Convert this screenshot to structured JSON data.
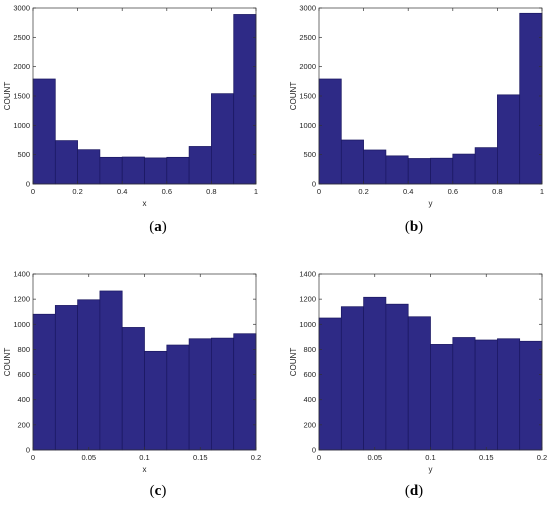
{
  "bar_color": "#2e2a86",
  "bar_edge_color": "#1a1760",
  "chart_data": [
    {
      "type": "bar",
      "caption": "a",
      "xlabel": "x",
      "ylabel": "COUNT",
      "xlim": [
        0,
        1
      ],
      "ylim": [
        0,
        3000
      ],
      "xticks": [
        0,
        0.2,
        0.4,
        0.6,
        0.8,
        1
      ],
      "xtick_labels": [
        "0",
        "0.2",
        "0.4",
        "0.6",
        "0.8",
        "1"
      ],
      "yticks": [
        0,
        500,
        1000,
        1500,
        2000,
        2500,
        3000
      ],
      "bin_edges": [
        0,
        0.1,
        0.2,
        0.3,
        0.4,
        0.5,
        0.6,
        0.7,
        0.8,
        0.9,
        1.0
      ],
      "values": [
        1790,
        740,
        585,
        455,
        460,
        445,
        455,
        640,
        1540,
        2890
      ]
    },
    {
      "type": "bar",
      "caption": "b",
      "xlabel": "y",
      "ylabel": "COUNT",
      "xlim": [
        0,
        1
      ],
      "ylim": [
        0,
        3000
      ],
      "xticks": [
        0,
        0.2,
        0.4,
        0.6,
        0.8,
        1
      ],
      "xtick_labels": [
        "0",
        "0.2",
        "0.4",
        "0.6",
        "0.8",
        "1"
      ],
      "yticks": [
        0,
        500,
        1000,
        1500,
        2000,
        2500,
        3000
      ],
      "bin_edges": [
        0,
        0.1,
        0.2,
        0.3,
        0.4,
        0.5,
        0.6,
        0.7,
        0.8,
        0.9,
        1.0
      ],
      "values": [
        1790,
        750,
        580,
        480,
        435,
        440,
        510,
        620,
        1520,
        2910
      ]
    },
    {
      "type": "bar",
      "caption": "c",
      "xlabel": "x",
      "ylabel": "COUNT",
      "xlim": [
        0,
        0.2
      ],
      "ylim": [
        0,
        1400
      ],
      "xticks": [
        0,
        0.05,
        0.1,
        0.15,
        0.2
      ],
      "xtick_labels": [
        "0",
        "0.05",
        "0.1",
        "0.15",
        "0.2"
      ],
      "yticks": [
        0,
        200,
        400,
        600,
        800,
        1000,
        1200,
        1400
      ],
      "bin_edges": [
        0,
        0.02,
        0.04,
        0.06,
        0.08,
        0.1,
        0.12,
        0.14,
        0.16,
        0.18,
        0.2
      ],
      "values": [
        1080,
        1150,
        1195,
        1265,
        975,
        785,
        835,
        885,
        890,
        925
      ]
    },
    {
      "type": "bar",
      "caption": "d",
      "xlabel": "y",
      "ylabel": "COUNT",
      "xlim": [
        0,
        0.2
      ],
      "ylim": [
        0,
        1400
      ],
      "xticks": [
        0,
        0.05,
        0.1,
        0.15,
        0.2
      ],
      "xtick_labels": [
        "0",
        "0.05",
        "0.1",
        "0.15",
        "0.2"
      ],
      "yticks": [
        0,
        200,
        400,
        600,
        800,
        1000,
        1200,
        1400
      ],
      "bin_edges": [
        0,
        0.02,
        0.04,
        0.06,
        0.08,
        0.1,
        0.12,
        0.14,
        0.16,
        0.18,
        0.2
      ],
      "values": [
        1050,
        1140,
        1215,
        1160,
        1060,
        840,
        895,
        875,
        885,
        865
      ]
    }
  ]
}
